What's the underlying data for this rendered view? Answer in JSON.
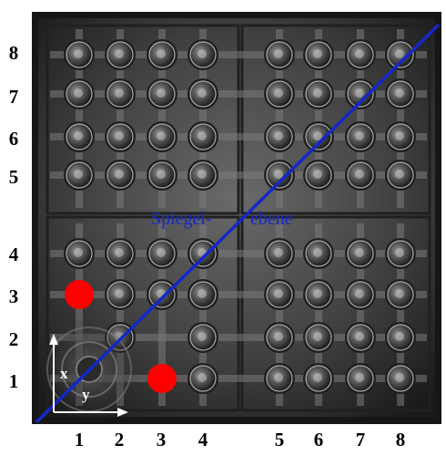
{
  "title": "",
  "row_labels": [
    "8",
    "7",
    "6",
    "5",
    "4",
    "3",
    "2",
    "1"
  ],
  "col_labels": [
    "1",
    "2",
    "3",
    "4",
    "5",
    "6",
    "7",
    "8"
  ],
  "axes": {
    "x_label": "x",
    "y_label": "y"
  },
  "mirror_plane_label": {
    "left": "Spiegel-",
    "right": "ebene"
  },
  "markers": [
    {
      "name": "red-dot-col1-row3",
      "col": 1,
      "row": 3
    },
    {
      "name": "red-dot-col3-row1",
      "col": 3,
      "row": 1
    }
  ],
  "colors": {
    "tray": "#3a3a3a",
    "diagonal": "#1428c8",
    "marker": "#ff0000",
    "label_text": "#1428c8",
    "axis": "#ffffff"
  }
}
